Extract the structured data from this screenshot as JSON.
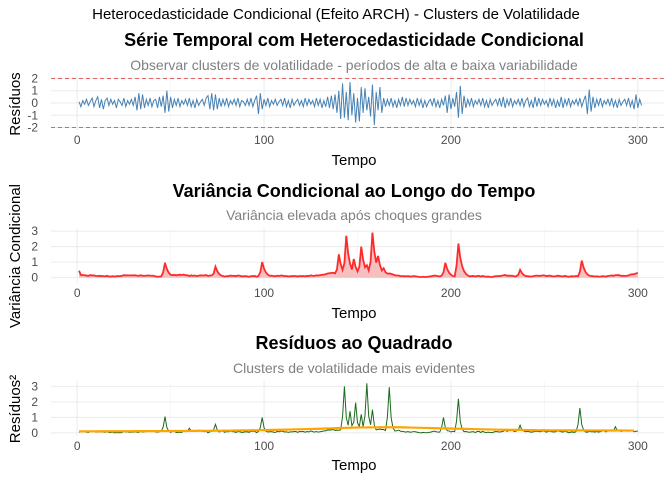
{
  "figure_title": "Heterocedasticidade Condicional (Efeito ARCH) - Clusters de Volatilidade",
  "colors": {
    "residuals_line": "#4682B4",
    "threshold_line": "#E06666",
    "variance_line": "#FF2B2B",
    "variance_fill": "#F6B5B5",
    "squared_line": "#1B6B1B",
    "trend_line": "#FFA500",
    "grid": "#EBEBEB",
    "subtitle": "#808080"
  },
  "chart_data": [
    {
      "id": "residuals",
      "type": "line",
      "title": "Série Temporal com Heterocedasticidade Condicional",
      "subtitle": "Observar clusters de volatilidade - períodos de alta e baixa variabilidade",
      "xlabel": "Tempo",
      "ylabel": "Resíduos",
      "xlim": [
        -14,
        314
      ],
      "ylim": [
        -2.2,
        2.2
      ],
      "xticks": [
        0,
        100,
        200,
        300
      ],
      "yticks": [
        -2,
        -1,
        0,
        1,
        2
      ],
      "grid": true,
      "reference_lines": [
        2,
        -2
      ],
      "series": [
        {
          "x_start": 1,
          "values": [
            0.1,
            -0.3,
            0.2,
            -0.1,
            0.3,
            -0.2,
            0.1,
            0.4,
            -0.3,
            0.2,
            0.5,
            -0.4,
            0.3,
            -0.5,
            0.2,
            0.4,
            -0.2,
            0.3,
            -0.1,
            0.2,
            -0.4,
            0.3,
            0.1,
            -0.2,
            0.4,
            -0.3,
            0.2,
            -0.1,
            0.3,
            -0.2,
            0.5,
            -0.6,
            0.8,
            -0.5,
            0.7,
            -0.4,
            0.3,
            -0.2,
            0.4,
            -0.3,
            0.2,
            0.3,
            -0.4,
            0.5,
            -0.3,
            0.6,
            -0.8,
            1.0,
            -0.7,
            0.5,
            -0.4,
            0.3,
            -0.2,
            0.4,
            -0.3,
            0.2,
            -0.1,
            0.3,
            -0.2,
            0.4,
            -0.3,
            0.2,
            -0.4,
            0.3,
            -0.2,
            0.1,
            0.3,
            -0.2,
            0.4,
            0.6,
            -0.5,
            0.8,
            -0.6,
            0.7,
            -0.5,
            0.4,
            -0.3,
            0.3,
            -0.2,
            0.4,
            -0.3,
            0.2,
            -0.1,
            0.3,
            -0.2,
            0.4,
            -0.3,
            0.2,
            0.1,
            -0.2,
            0.3,
            -0.2,
            0.4,
            -0.3,
            0.2,
            0.6,
            -0.9,
            0.8,
            -0.5,
            0.3,
            -0.2,
            0.4,
            -0.3,
            0.2,
            -0.1,
            0.3,
            -0.2,
            0.1,
            0.3,
            -0.2,
            0.4,
            -0.3,
            0.2,
            -0.4,
            0.3,
            -0.2,
            0.1,
            0.3,
            -0.2,
            0.2,
            -0.3,
            0.4,
            -0.2,
            0.3,
            -0.1,
            0.2,
            -0.3,
            0.4,
            -0.2,
            0.3,
            -0.4,
            0.2,
            -0.3,
            0.5,
            -0.4,
            0.6,
            -0.5,
            0.7,
            -0.8,
            1.0,
            -1.3,
            1.6,
            -1.2,
            0.9,
            -1.4,
            1.7,
            -1.0,
            0.8,
            -1.6,
            0.4,
            -1.5,
            1.3,
            -0.8,
            1.2,
            -0.6,
            0.5,
            -1.1,
            1.5,
            -1.8,
            0.9,
            -0.6,
            1.3,
            -0.8,
            0.4,
            -0.3,
            0.3,
            -0.2,
            0.4,
            -0.3,
            0.2,
            -0.4,
            0.3,
            -0.2,
            0.5,
            -0.3,
            0.4,
            -0.2,
            0.3,
            -0.1,
            0.2,
            -0.3,
            0.4,
            -0.2,
            0.3,
            -0.4,
            0.2,
            -0.3,
            0.1,
            0.3,
            -0.2,
            0.4,
            -0.3,
            0.2,
            -0.4,
            0.3,
            -0.2,
            0.6,
            -0.8,
            0.7,
            -0.5,
            0.4,
            -0.3,
            0.9,
            -1.2,
            1.4,
            -0.9,
            0.6,
            -0.4,
            0.3,
            -0.2,
            0.4,
            -0.3,
            0.2,
            -0.1,
            0.3,
            -0.2,
            0.4,
            -0.3,
            0.2,
            -0.4,
            0.3,
            -0.2,
            0.1,
            0.3,
            -0.2,
            0.4,
            -0.3,
            0.5,
            -0.4,
            0.3,
            -0.2,
            0.4,
            -0.3,
            0.2,
            -0.1,
            0.3,
            -0.2,
            0.4,
            -0.3,
            0.2,
            0.4,
            -0.3,
            0.2,
            -0.4,
            0.5,
            -0.3,
            0.4,
            -0.2,
            0.3,
            -0.1,
            0.2,
            -0.3,
            0.4,
            -0.2,
            0.3,
            -0.4,
            0.2,
            -0.3,
            0.5,
            -0.4,
            0.3,
            -0.2,
            0.4,
            -0.3,
            0.2,
            -0.1,
            0.3,
            -0.2,
            0.4,
            -0.3,
            0.2,
            0.6,
            -0.9,
            1.1,
            -0.7,
            0.5,
            -0.4,
            0.3,
            -0.2,
            0.4,
            -0.3,
            0.2,
            -0.1,
            0.3,
            -0.2,
            0.4,
            -0.3,
            0.2,
            -0.4,
            0.3,
            -0.2,
            0.1,
            0.3,
            -0.2,
            0.4,
            -0.3,
            0.2,
            -0.5,
            0.7,
            -0.4,
            0.3,
            -0.2
          ]
        }
      ]
    },
    {
      "id": "variance",
      "type": "area",
      "title": "Variância Condicional ao Longo do Tempo",
      "subtitle": "Variância elevada após choques grandes",
      "xlabel": "Tempo",
      "ylabel": "Variância Condicional",
      "xlim": [
        -14,
        314
      ],
      "ylim": [
        -0.35,
        3.2
      ],
      "xticks": [
        0,
        100,
        200,
        300
      ],
      "yticks": [
        0,
        1,
        2,
        3
      ],
      "grid": true,
      "baseline_points": [
        [
          1,
          0.45
        ],
        [
          2,
          0.15
        ],
        [
          10,
          0.12
        ],
        [
          18,
          0.08
        ],
        [
          28,
          0.15
        ],
        [
          38,
          0.12
        ],
        [
          46,
          0.05
        ],
        [
          55,
          0.2
        ],
        [
          60,
          0.12
        ],
        [
          64,
          0.1
        ],
        [
          68,
          0.15
        ],
        [
          78,
          0.08
        ],
        [
          86,
          0.12
        ],
        [
          92,
          0.06
        ],
        [
          104,
          0.12
        ],
        [
          112,
          0.1
        ],
        [
          120,
          0.08
        ],
        [
          126,
          0.12
        ],
        [
          132,
          0.2
        ],
        [
          136,
          0.3
        ],
        [
          168,
          0.25
        ],
        [
          172,
          0.1
        ],
        [
          180,
          0.08
        ],
        [
          186,
          0.06
        ],
        [
          192,
          0.12
        ],
        [
          198,
          0.08
        ],
        [
          212,
          0.1
        ],
        [
          222,
          0.06
        ],
        [
          228,
          0.15
        ],
        [
          234,
          0.1
        ],
        [
          242,
          0.08
        ],
        [
          250,
          0.12
        ],
        [
          262,
          0.08
        ],
        [
          274,
          0.1
        ],
        [
          282,
          0.06
        ],
        [
          288,
          0.15
        ],
        [
          294,
          0.1
        ],
        [
          300,
          0.3
        ]
      ],
      "peaks": [
        [
          47,
          0.95
        ],
        [
          74,
          0.7
        ],
        [
          99,
          1.0
        ],
        [
          140,
          1.5
        ],
        [
          144,
          2.7
        ],
        [
          148,
          1.2
        ],
        [
          152,
          2.0
        ],
        [
          155,
          0.8
        ],
        [
          158,
          2.9
        ],
        [
          161,
          1.4
        ],
        [
          164,
          0.6
        ],
        [
          197,
          0.95
        ],
        [
          204,
          2.2
        ],
        [
          237,
          0.5
        ],
        [
          270,
          1.1
        ]
      ]
    },
    {
      "id": "squared",
      "type": "line",
      "title": "Resíduos ao Quadrado",
      "subtitle": "Clusters de volatilidade mais evidentes",
      "xlabel": "Tempo",
      "ylabel": "Resíduos²",
      "xlim": [
        -14,
        314
      ],
      "ylim": [
        -0.2,
        3.35
      ],
      "xticks": [
        0,
        100,
        200,
        300
      ],
      "yticks": [
        0,
        1,
        2,
        3
      ],
      "grid": true,
      "baseline_points": [
        [
          1,
          0.05
        ],
        [
          10,
          0.08
        ],
        [
          20,
          0.04
        ],
        [
          30,
          0.06
        ],
        [
          40,
          0.1
        ],
        [
          50,
          0.05
        ],
        [
          60,
          0.08
        ],
        [
          65,
          0.15
        ],
        [
          70,
          0.06
        ],
        [
          80,
          0.08
        ],
        [
          90,
          0.05
        ],
        [
          110,
          0.08
        ],
        [
          120,
          0.06
        ],
        [
          130,
          0.1
        ],
        [
          136,
          0.2
        ],
        [
          168,
          0.2
        ],
        [
          175,
          0.08
        ],
        [
          185,
          0.05
        ],
        [
          195,
          0.1
        ],
        [
          210,
          0.08
        ],
        [
          220,
          0.05
        ],
        [
          232,
          0.15
        ],
        [
          245,
          0.06
        ],
        [
          255,
          0.1
        ],
        [
          265,
          0.05
        ],
        [
          280,
          0.08
        ],
        [
          290,
          0.12
        ],
        [
          300,
          0.1
        ]
      ],
      "peaks": [
        [
          47,
          1.05
        ],
        [
          60,
          0.3
        ],
        [
          74,
          0.55
        ],
        [
          99,
          1.0
        ],
        [
          143,
          3.0
        ],
        [
          146,
          1.4
        ],
        [
          149,
          1.95
        ],
        [
          152,
          1.2
        ],
        [
          155,
          3.2
        ],
        [
          158,
          1.5
        ],
        [
          167,
          2.95
        ],
        [
          196,
          1.0
        ],
        [
          204,
          2.2
        ],
        [
          237,
          0.5
        ],
        [
          269,
          1.6
        ],
        [
          288,
          0.4
        ]
      ],
      "trend": {
        "x": [
          1,
          25,
          50,
          75,
          100,
          125,
          150,
          170,
          200,
          225,
          250,
          275,
          300
        ],
        "values": [
          0.1,
          0.11,
          0.12,
          0.14,
          0.18,
          0.25,
          0.35,
          0.37,
          0.28,
          0.21,
          0.17,
          0.16,
          0.15
        ]
      }
    }
  ]
}
